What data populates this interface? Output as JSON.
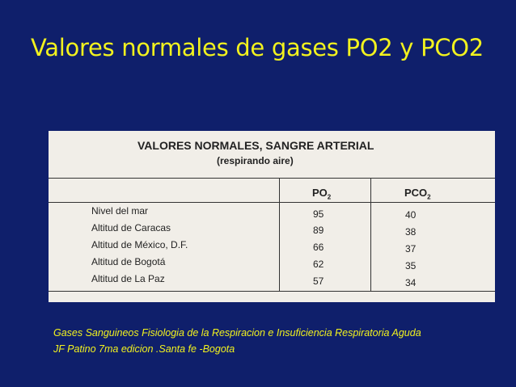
{
  "title": "Valores normales de gases PO2 y PCO2",
  "table": {
    "heading": "VALORES NORMALES, SANGRE ARTERIAL",
    "subheading": "(respirando aire)",
    "col_po2": "PO",
    "col_pco2": "PCO",
    "sub": "2",
    "rows": [
      {
        "label": "Nivel del mar",
        "po2": "95",
        "pco2": "40"
      },
      {
        "label": "Altitud de Caracas",
        "po2": "89",
        "pco2": "38"
      },
      {
        "label": "Altitud de México, D.F.",
        "po2": "66",
        "pco2": "37"
      },
      {
        "label": "Altitud de Bogotá",
        "po2": "62",
        "pco2": "35"
      },
      {
        "label": "Altitud de La Paz",
        "po2": "57",
        "pco2": "34"
      }
    ]
  },
  "citation": {
    "line1": "Gases Sanguineos Fisiologia de la Respiracion e Insuficiencia Respiratoria Aguda",
    "line2": "JF Patino 7ma edicion .Santa fe -Bogota"
  }
}
